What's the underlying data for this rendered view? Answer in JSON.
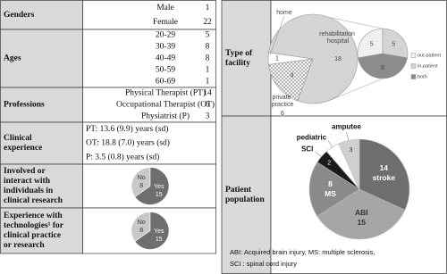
{
  "left_table": {
    "rows": [
      {
        "label": [
          "Genders"
        ],
        "items": [
          {
            "name": "Male",
            "count": 1
          },
          {
            "name": "Female",
            "count": 22
          }
        ]
      },
      {
        "label": [
          "Ages"
        ],
        "items": [
          {
            "name": "20-29",
            "count": 5
          },
          {
            "name": "30-39",
            "count": 8
          },
          {
            "name": "40-49",
            "count": 8
          },
          {
            "name": "50-59",
            "count": 1
          },
          {
            "name": "60-69",
            "count": 1
          }
        ]
      },
      {
        "label": [
          "Professions"
        ],
        "items": [
          {
            "name": "Physical Therapist (PT)",
            "count": 14
          },
          {
            "name": "Occupational Therapist (OT)",
            "count": 6
          },
          {
            "name": "Physiatrist (P)",
            "count": 3
          }
        ]
      },
      {
        "label": [
          "Clinical",
          "experience"
        ],
        "lines": [
          "PT: 13.6 (9.9) years (sd)",
          "OT: 18.8 (7.0) years (sd)",
          "P: 3.5 (0.8) years (sd)"
        ]
      },
      {
        "label": [
          "Involved or",
          "interact with",
          "individuals in",
          "clinical research"
        ],
        "pie": {
          "slices": [
            {
              "name": "No",
              "value": 8,
              "color": "#c8c8c8"
            },
            {
              "name": "Yes",
              "value": 15,
              "color": "#6e6e6e"
            }
          ]
        }
      },
      {
        "label": [
          "Experience with",
          "technologies¹ for",
          "clinical practice",
          "or research"
        ],
        "pie": {
          "slices": [
            {
              "name": "No",
              "value": 8,
              "color": "#c8c8c8"
            },
            {
              "name": "Yes",
              "value": 15,
              "color": "#6e6e6e"
            }
          ]
        }
      }
    ]
  },
  "right_table": {
    "rows": [
      {
        "label": [
          "Type of",
          "facility"
        ],
        "pie": {
          "slices": [
            {
              "name": "home",
              "value": 1,
              "color": "#ffffff"
            },
            {
              "name": "rehabilitation hospital",
              "value": 18,
              "color": "#d4d4d4"
            },
            {
              "name": "private practice",
              "value": 4,
              "color": "#ffffff",
              "pattern": "crosshatch",
              "total": 6
            }
          ]
        },
        "detail_pie": {
          "slices": [
            {
              "name": "out-patient",
              "value": 5,
              "color": "#f0f0f0"
            },
            {
              "name": "in-patient",
              "value": 5,
              "color": "#d4d4d4"
            },
            {
              "name": "both",
              "value": 8,
              "color": "#8c8c8c"
            }
          ]
        }
      },
      {
        "label": [
          "Patient",
          "population"
        ],
        "pie": {
          "slices": [
            {
              "name": "stroke",
              "value": 14,
              "color": "#6e6e6e"
            },
            {
              "name": "ABI",
              "value": 15,
              "color": "#a6a6a6"
            },
            {
              "name": "MS",
              "value": 8,
              "color": "#8a8a8a"
            },
            {
              "name": "SCI",
              "value": 2,
              "color": "#1a1a1a"
            },
            {
              "name": "pediatric",
              "value": 2,
              "color": "#ffffff"
            },
            {
              "name": "amputee",
              "value": 3,
              "color": "#cfcfcf"
            }
          ],
          "value_labels": [
            "14",
            "15",
            "8",
            "2",
            null,
            "3"
          ]
        },
        "footnote": [
          "ABI: Acquired brain injury, MS: multiple sclerosis,",
          "SCI : spinal cord injury"
        ]
      }
    ]
  }
}
